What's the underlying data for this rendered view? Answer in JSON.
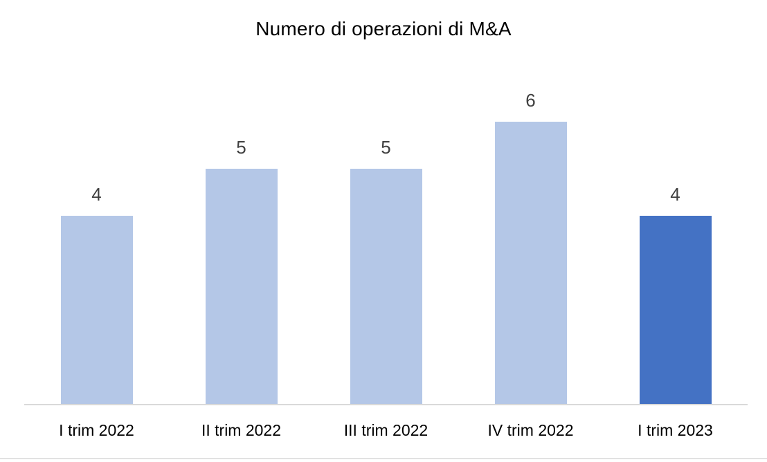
{
  "chart_data": {
    "type": "bar",
    "title": "Numero di operazioni di M&A",
    "categories": [
      "I trim 2022",
      "II trim 2022",
      "III trim 2022",
      "IV trim 2022",
      "I trim 2023"
    ],
    "values": [
      4,
      5,
      5,
      6,
      4
    ],
    "data_labels_shown": true,
    "xlabel": "",
    "ylabel": "",
    "ylim": [
      0,
      6
    ],
    "grid": false,
    "legend": false,
    "highlight_index": 4,
    "colors": {
      "bar_default": "#B4C7E7",
      "bar_highlight": "#4472C4",
      "axis_line": "#D9D9D9",
      "data_label": "#404040",
      "category_label": "#000000",
      "title": "#000000",
      "background": "#FFFFFF",
      "bottom_divider": "#E2E2E2"
    }
  }
}
